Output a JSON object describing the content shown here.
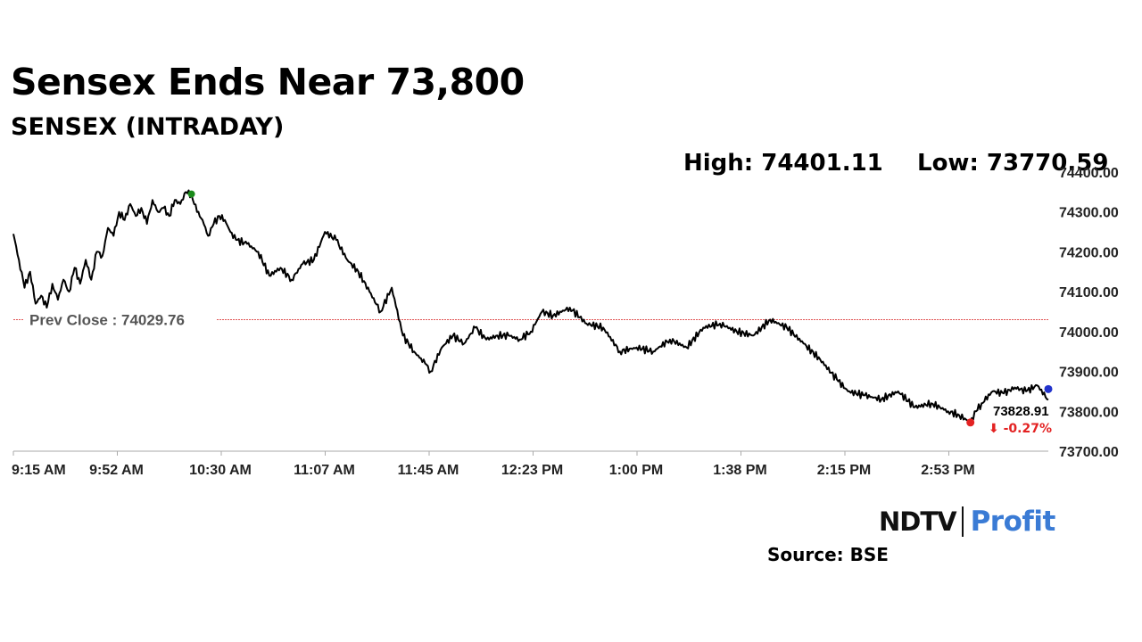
{
  "title": "Sensex Ends Near 73,800",
  "subtitle": "SENSEX (INTRADAY)",
  "stats": {
    "high_label": "High: 74401.11",
    "low_label": "Low: 73770.59"
  },
  "colors": {
    "line": "#000000",
    "prev_close_line": "#e05555",
    "high_marker": "#1a8a1a",
    "low_marker": "#e32222",
    "last_marker": "#2233cc",
    "change_negative": "#e32222",
    "brand_profit": "#3a7bd5"
  },
  "brand": {
    "ndtv": "NDTV",
    "profit": "Profit"
  },
  "source": "Source: BSE",
  "chart_data": {
    "type": "line",
    "title": "SENSEX (INTRADAY)",
    "x_ticks": [
      "9:15 AM",
      "9:52 AM",
      "10:30 AM",
      "11:07 AM",
      "11:45 AM",
      "12:23 PM",
      "1:00 PM",
      "1:38 PM",
      "2:15 PM",
      "2:53 PM"
    ],
    "y_ticks": [
      "74400.00",
      "74300.00",
      "74200.00",
      "74100.00",
      "74000.00",
      "73900.00",
      "73800.00",
      "73700.00"
    ],
    "ylim": [
      73700,
      74400
    ],
    "xlim_minutes_from_open": [
      0,
      372
    ],
    "grid": false,
    "prev_close": {
      "label": "Prev Close : 74029.76",
      "value": 74029.76
    },
    "last": {
      "label": "73828.91",
      "value": 73828.91,
      "change": "⬇ -0.27%"
    },
    "high_point": {
      "t": 64,
      "value": 74345
    },
    "low_point": {
      "t": 344,
      "value": 73772
    },
    "series": [
      {
        "t": [
          0,
          2,
          4,
          6,
          8,
          10,
          12,
          14,
          16,
          18,
          20,
          22,
          24,
          26,
          28,
          30,
          32,
          34,
          36,
          38,
          40,
          42,
          44,
          46,
          48,
          50,
          52,
          54,
          56,
          58,
          60,
          62,
          64,
          66,
          68,
          70,
          72,
          74,
          76,
          78,
          80,
          84,
          88,
          92,
          96,
          100,
          104,
          108,
          112,
          116,
          120,
          124,
          128,
          132,
          136,
          140,
          144,
          148,
          150,
          154,
          158,
          162,
          166,
          170,
          174,
          178,
          182,
          186,
          190,
          194,
          200,
          206,
          212,
          218,
          224,
          230,
          236,
          242,
          248,
          254,
          260,
          266,
          272,
          278,
          284,
          290,
          296,
          300,
          306,
          312,
          318,
          324,
          330,
          336,
          340,
          344,
          346,
          348,
          352,
          356,
          360,
          364,
          368,
          372
        ],
        "values": [
          74245,
          74180,
          74110,
          74150,
          74070,
          74090,
          74060,
          74120,
          74080,
          74130,
          74100,
          74160,
          74120,
          74180,
          74130,
          74200,
          74190,
          74260,
          74240,
          74300,
          74280,
          74320,
          74290,
          74310,
          74270,
          74330,
          74300,
          74310,
          74290,
          74330,
          74320,
          74350,
          74345,
          74300,
          74280,
          74240,
          74270,
          74290,
          74280,
          74250,
          74230,
          74220,
          74200,
          74140,
          74160,
          74130,
          74170,
          74180,
          74250,
          74230,
          74180,
          74150,
          74100,
          74050,
          74110,
          73990,
          73950,
          73920,
          73900,
          73960,
          73990,
          73970,
          74010,
          73980,
          73990,
          73990,
          73980,
          74000,
          74050,
          74040,
          74060,
          74020,
          74010,
          73950,
          73960,
          73950,
          73980,
          73960,
          74010,
          74020,
          74000,
          73990,
          74030,
          74010,
          73970,
          73930,
          73880,
          73850,
          73840,
          73830,
          73850,
          73810,
          73820,
          73800,
          73790,
          73772,
          73800,
          73820,
          73850,
          73845,
          73860,
          73850,
          73865,
          73828.91
        ]
      }
    ]
  }
}
